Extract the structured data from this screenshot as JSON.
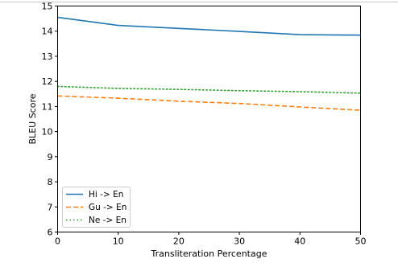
{
  "chart_data": {
    "type": "line",
    "xlabel": "Transliteration Percentage",
    "ylabel": "BLEU Score",
    "xlim": [
      0,
      50
    ],
    "ylim": [
      6,
      15
    ],
    "x_ticks": [
      "0",
      "10",
      "20",
      "30",
      "40",
      "50"
    ],
    "y_ticks": [
      "6",
      "7",
      "8",
      "9",
      "10",
      "11",
      "12",
      "13",
      "14",
      "15"
    ],
    "grid": false,
    "legend_position": "lower-left",
    "x": [
      0,
      10,
      20,
      30,
      40,
      50
    ],
    "series": [
      {
        "name": "Hi -> En",
        "values": [
          14.55,
          14.23,
          14.11,
          13.99,
          13.86,
          13.84
        ],
        "color": "#1f77b4",
        "style": "solid"
      },
      {
        "name": "Gu -> En",
        "values": [
          11.42,
          11.33,
          11.21,
          11.12,
          10.98,
          10.85
        ],
        "color": "#ff7f0e",
        "style": "dashed"
      },
      {
        "name": "Ne -> En",
        "values": [
          11.8,
          11.72,
          11.68,
          11.63,
          11.59,
          11.53
        ],
        "color": "#2ca02c",
        "style": "dotted"
      }
    ]
  }
}
